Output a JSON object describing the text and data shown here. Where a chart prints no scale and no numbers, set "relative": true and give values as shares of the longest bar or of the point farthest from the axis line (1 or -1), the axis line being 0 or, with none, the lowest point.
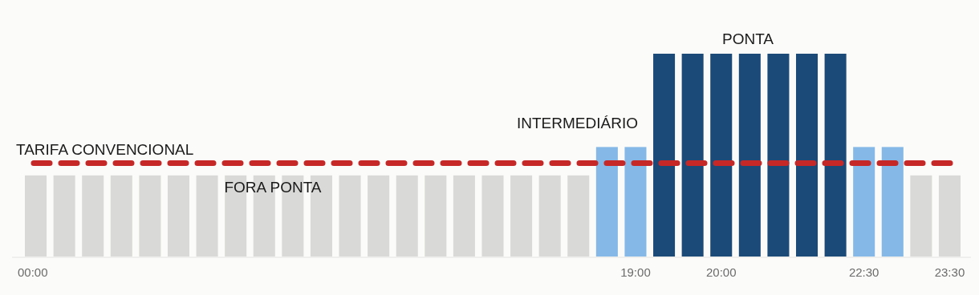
{
  "chart_data": {
    "type": "bar",
    "relative": true,
    "categories": [
      "00:00",
      null,
      null,
      null,
      null,
      null,
      null,
      null,
      null,
      null,
      null,
      null,
      null,
      null,
      null,
      null,
      null,
      null,
      null,
      null,
      null,
      "19:00",
      null,
      null,
      "20:00",
      null,
      null,
      null,
      null,
      "22:30",
      null,
      null,
      "23:30"
    ],
    "values": [
      0.4,
      0.4,
      0.4,
      0.4,
      0.4,
      0.4,
      0.4,
      0.4,
      0.4,
      0.4,
      0.4,
      0.4,
      0.4,
      0.4,
      0.4,
      0.4,
      0.4,
      0.4,
      0.4,
      0.4,
      0.54,
      0.54,
      1,
      1,
      1,
      1,
      1,
      1,
      1,
      0.54,
      0.54,
      0.4,
      0.4
    ],
    "colors": [
      "#d9d9d7",
      "#d9d9d7",
      "#d9d9d7",
      "#d9d9d7",
      "#d9d9d7",
      "#d9d9d7",
      "#d9d9d7",
      "#d9d9d7",
      "#d9d9d7",
      "#d9d9d7",
      "#d9d9d7",
      "#d9d9d7",
      "#d9d9d7",
      "#d9d9d7",
      "#d9d9d7",
      "#d9d9d7",
      "#d9d9d7",
      "#d9d9d7",
      "#d9d9d7",
      "#d9d9d7",
      "#85b8e6",
      "#85b8e6",
      "#1c4a78",
      "#1c4a78",
      "#1c4a78",
      "#1c4a78",
      "#1c4a78",
      "#1c4a78",
      "#1c4a78",
      "#85b8e6",
      "#85b8e6",
      "#d9d9d7",
      "#d9d9d7"
    ],
    "ref_lines": [
      {
        "axis": "y",
        "value": 0.46,
        "label": "TARIFA CONVENCIONAL",
        "color": "#c62828",
        "line_style": "dashed"
      }
    ],
    "annotations": [
      "FORA PONTA",
      "INTERMEDIÁRIO",
      "PONTA"
    ]
  }
}
